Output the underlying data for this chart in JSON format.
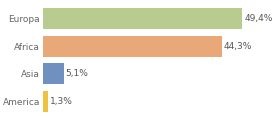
{
  "categories": [
    "America",
    "Asia",
    "Africa",
    "Europa"
  ],
  "values": [
    1.3,
    5.1,
    44.3,
    49.4
  ],
  "labels": [
    "1,3%",
    "5,1%",
    "44,3%",
    "49,4%"
  ],
  "bar_colors": [
    "#f0c040",
    "#7090c0",
    "#e8a878",
    "#b8cc90"
  ],
  "xlim": [
    0,
    58
  ],
  "background_color": "#ffffff",
  "label_fontsize": 6.5,
  "tick_fontsize": 6.5,
  "bar_height": 0.75
}
